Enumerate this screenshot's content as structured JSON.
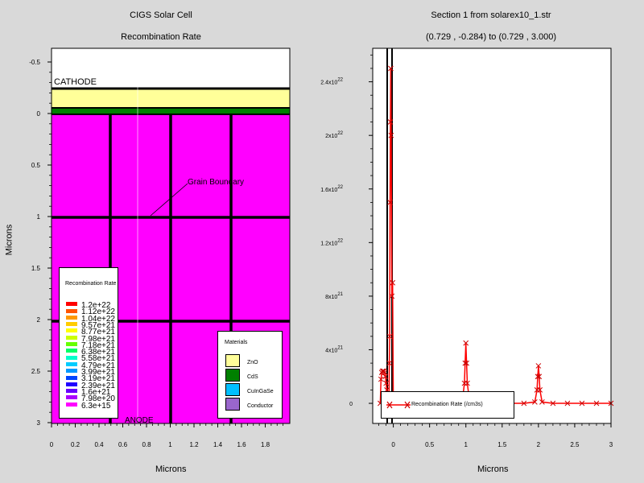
{
  "colors": {
    "background": "#d9d9d9",
    "zno": "#ffff99",
    "cds": "#008000",
    "cuingase": "#00c0ff",
    "conductor": "#9966cc",
    "absorber": "#ff00ff",
    "curve": "#ff0000"
  },
  "left": {
    "title": "CIGS Solar Cell",
    "subtitle": "Recombination Rate",
    "xlabel": "Microns",
    "ylabel": "Microns",
    "x_ticks": [
      "0",
      "0.2",
      "0.4",
      "0.6",
      "0.8",
      "1",
      "1.2",
      "1.4",
      "1.6",
      "1.8"
    ],
    "y_ticks": [
      "-0.5",
      "0",
      "0.5",
      "1",
      "1.5",
      "2",
      "2.5",
      "3"
    ],
    "electrode_top": "CATHODE",
    "electrode_bottom": "ANODE",
    "annotation": "Grain Boundary",
    "rate_legend": {
      "title": "Recombination Rate",
      "items": [
        {
          "label": "1.2e+22",
          "color": "#ff0000"
        },
        {
          "label": "1.12e+22",
          "color": "#ff5500"
        },
        {
          "label": "1.04e+22",
          "color": "#ff9900"
        },
        {
          "label": "9.57e+21",
          "color": "#ffcc00"
        },
        {
          "label": "8.77e+21",
          "color": "#ffff00"
        },
        {
          "label": "7.98e+21",
          "color": "#ccff00"
        },
        {
          "label": "7.18e+21",
          "color": "#66ff00"
        },
        {
          "label": "6.38e+21",
          "color": "#00ff66"
        },
        {
          "label": "5.58e+21",
          "color": "#00ffcc"
        },
        {
          "label": "4.79e+21",
          "color": "#00ccff"
        },
        {
          "label": "3.99e+21",
          "color": "#0099ff"
        },
        {
          "label": "3.19e+21",
          "color": "#0044ff"
        },
        {
          "label": "2.39e+21",
          "color": "#2200ff"
        },
        {
          "label": "1.6e+21",
          "color": "#6600ff"
        },
        {
          "label": "7.98e+20",
          "color": "#aa00ff"
        },
        {
          "label": "6.3e+15",
          "color": "#ff00ff"
        }
      ]
    },
    "materials_legend": {
      "title": "Materials",
      "items": [
        {
          "label": "ZnO",
          "color": "#ffff99"
        },
        {
          "label": "CdS",
          "color": "#008000"
        },
        {
          "label": "CuInGaSe",
          "color": "#00c0ff"
        },
        {
          "label": "Conductor",
          "color": "#9966cc"
        }
      ]
    }
  },
  "chart_data": {
    "type": "line",
    "title": "Section 1 from solarex10_1.str",
    "subtitle": "(0.729 , -0.284) to (0.729 , 3.000)",
    "xlabel": "Microns",
    "ylabel": "",
    "xlim": [
      -0.284,
      3.0
    ],
    "ylim": [
      -1.5e+21,
      2.65e+22
    ],
    "x_ticks": [
      "0",
      "0.5",
      "1",
      "1.5",
      "2",
      "2.5",
      "3"
    ],
    "y_ticks": [
      {
        "mant": "0",
        "exp": ""
      },
      {
        "mant": "4x10",
        "exp": "21"
      },
      {
        "mant": "8x10",
        "exp": "21"
      },
      {
        "mant": "1.2x10",
        "exp": "22"
      },
      {
        "mant": "1.6x10",
        "exp": "22"
      },
      {
        "mant": "2x10",
        "exp": "22"
      },
      {
        "mant": "2.4x10",
        "exp": "22"
      }
    ],
    "y_tick_values": [
      0,
      4e+21,
      8e+21,
      1.2e+22,
      1.6e+22,
      2e+22,
      2.4e+22
    ],
    "grid": false,
    "legend_position": "bottom-left",
    "series": [
      {
        "name": "Recombination Rate (/cm3s)",
        "x": [
          -0.18,
          -0.17,
          -0.16,
          -0.15,
          -0.14,
          -0.13,
          -0.12,
          -0.11,
          -0.1,
          -0.09,
          -0.08,
          -0.07,
          -0.06,
          -0.055,
          -0.05,
          -0.045,
          -0.04,
          -0.035,
          -0.03,
          -0.02,
          -0.01,
          0.0,
          0.05,
          0.2,
          0.4,
          0.6,
          0.8,
          0.95,
          0.98,
          0.99,
          1.0,
          1.01,
          1.02,
          1.05,
          1.2,
          1.4,
          1.6,
          1.8,
          1.95,
          1.98,
          1.99,
          2.0,
          2.01,
          2.02,
          2.05,
          2.2,
          2.4,
          2.6,
          2.8,
          3.0
        ],
        "y": [
          0,
          1.8e+21,
          2.3e+21,
          2.4e+21,
          2.4e+21,
          2.4e+21,
          2.3e+21,
          2e+21,
          1.5e+21,
          1e+21,
          5e+20,
          2e+20,
          1e+20,
          3e+21,
          5e+21,
          1.5e+22,
          2.1e+22,
          2.5e+22,
          2e+22,
          8e+21,
          9e+21,
          0,
          0,
          0,
          0,
          0,
          0,
          1e+20,
          1.5e+21,
          3e+21,
          4.5e+21,
          3e+21,
          1.5e+21,
          2e+20,
          0,
          0,
          0,
          0,
          1e+20,
          1e+21,
          2e+21,
          2.8e+21,
          2e+21,
          1e+21,
          1e+20,
          0,
          0,
          0,
          0,
          0
        ]
      }
    ]
  }
}
